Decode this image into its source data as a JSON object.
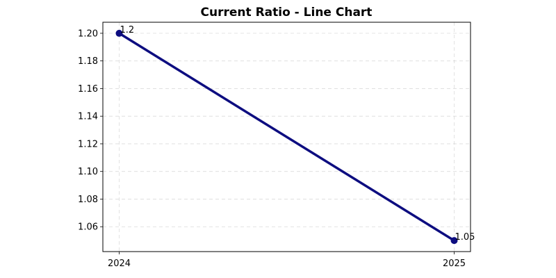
{
  "chart_data": {
    "type": "line",
    "title": "Current Ratio - Line Chart",
    "xlabel": "",
    "ylabel": "",
    "categories": [
      "2024",
      "2025"
    ],
    "series": [
      {
        "values": [
          1.2,
          1.05
        ],
        "data_labels": [
          "1.2",
          "1.05"
        ],
        "color": "#0d0d80"
      }
    ],
    "ylim": [
      1.042,
      1.208
    ],
    "yticks": [
      "1.06",
      "1.08",
      "1.10",
      "1.12",
      "1.14",
      "1.16",
      "1.18",
      "1.20"
    ],
    "ytick_values": [
      1.06,
      1.08,
      1.1,
      1.12,
      1.14,
      1.16,
      1.18,
      1.2
    ],
    "grid": true,
    "legend": "none"
  }
}
